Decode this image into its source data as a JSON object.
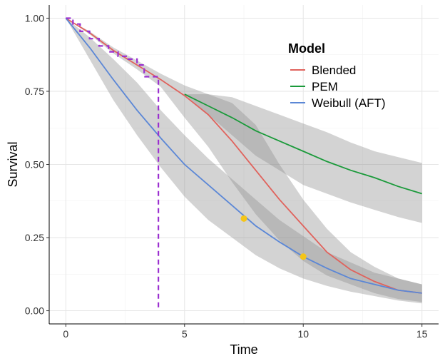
{
  "chart_data": {
    "type": "line",
    "title": "",
    "xlabel": "Time",
    "ylabel": "Survival",
    "xlim": [
      -0.7,
      15.7
    ],
    "ylim": [
      -0.045,
      1.045
    ],
    "x_ticks": [
      0,
      5,
      10,
      15
    ],
    "x_tick_labels": [
      "0",
      "5",
      "10",
      "15"
    ],
    "y_ticks": [
      0,
      0.25,
      0.5,
      0.75,
      1
    ],
    "y_tick_labels": [
      "0.00",
      "0.25",
      "0.50",
      "0.75",
      "1.00"
    ],
    "grid": true,
    "legend": {
      "title": "Model",
      "position": "top-right",
      "entries": [
        {
          "label": "Blended",
          "color": "#e0625c"
        },
        {
          "label": "PEM",
          "color": "#1a9a3a"
        },
        {
          "label": "Weibull (AFT)",
          "color": "#5b87d6"
        }
      ]
    },
    "series": [
      {
        "name": "Blended",
        "color": "#e0625c",
        "x": [
          0,
          1,
          2,
          3,
          4,
          5,
          6,
          7,
          8,
          9,
          10,
          11,
          12,
          13,
          14,
          15
        ],
        "y": [
          1.0,
          0.95,
          0.89,
          0.84,
          0.79,
          0.735,
          0.67,
          0.58,
          0.48,
          0.38,
          0.29,
          0.2,
          0.14,
          0.1,
          0.07,
          0.06
        ],
        "lower": [
          1.0,
          0.945,
          0.88,
          0.825,
          0.765,
          0.66,
          0.56,
          0.44,
          0.33,
          0.24,
          0.17,
          0.12,
          0.09,
          0.06,
          0.04,
          0.03
        ],
        "upper": [
          1.0,
          0.955,
          0.9,
          0.855,
          0.81,
          0.77,
          0.74,
          0.71,
          0.635,
          0.5,
          0.38,
          0.28,
          0.2,
          0.15,
          0.11,
          0.09
        ]
      },
      {
        "name": "PEM",
        "color": "#1a9a3a",
        "x": [
          5,
          6,
          7,
          8,
          9,
          10,
          11,
          12,
          13,
          14,
          15
        ],
        "y": [
          0.74,
          0.7,
          0.66,
          0.615,
          0.58,
          0.545,
          0.51,
          0.48,
          0.455,
          0.425,
          0.4
        ],
        "lower": [
          0.74,
          0.67,
          0.6,
          0.53,
          0.48,
          0.43,
          0.4,
          0.37,
          0.345,
          0.32,
          0.3
        ],
        "upper": [
          0.74,
          0.74,
          0.73,
          0.7,
          0.67,
          0.64,
          0.61,
          0.575,
          0.545,
          0.525,
          0.505
        ]
      },
      {
        "name": "Weibull (AFT)",
        "color": "#5b87d6",
        "x": [
          0,
          1,
          2,
          3,
          4,
          5,
          6,
          7,
          8,
          9,
          10,
          11,
          12,
          13,
          14,
          15
        ],
        "y": [
          1.0,
          0.9,
          0.79,
          0.685,
          0.59,
          0.5,
          0.43,
          0.36,
          0.29,
          0.235,
          0.185,
          0.145,
          0.11,
          0.09,
          0.07,
          0.06
        ],
        "lower": [
          1.0,
          0.86,
          0.72,
          0.6,
          0.49,
          0.39,
          0.31,
          0.25,
          0.19,
          0.145,
          0.11,
          0.085,
          0.065,
          0.05,
          0.035,
          0.025
        ],
        "upper": [
          1.0,
          0.935,
          0.86,
          0.78,
          0.685,
          0.6,
          0.52,
          0.45,
          0.38,
          0.31,
          0.255,
          0.2,
          0.165,
          0.13,
          0.11,
          0.09
        ]
      }
    ],
    "kaplan_meier": {
      "color": "#9b30d0",
      "style": "dashed",
      "x": [
        0,
        0.3,
        0.3,
        0.6,
        0.6,
        1.0,
        1.0,
        1.4,
        1.4,
        1.8,
        1.8,
        2.2,
        2.2,
        2.6,
        2.6,
        3.0,
        3.0,
        3.3,
        3.3,
        3.6,
        3.6,
        3.9,
        3.9
      ],
      "y": [
        1.0,
        1.0,
        0.98,
        0.98,
        0.955,
        0.955,
        0.93,
        0.93,
        0.905,
        0.905,
        0.885,
        0.885,
        0.87,
        0.87,
        0.86,
        0.86,
        0.84,
        0.84,
        0.8,
        0.8,
        0.8,
        0.8,
        0.0
      ]
    },
    "markers": [
      {
        "x": 7.5,
        "y": 0.315,
        "color": "#f5c518"
      },
      {
        "x": 10.0,
        "y": 0.185,
        "color": "#f5c518"
      }
    ],
    "band_color": "#8c8c8c"
  }
}
